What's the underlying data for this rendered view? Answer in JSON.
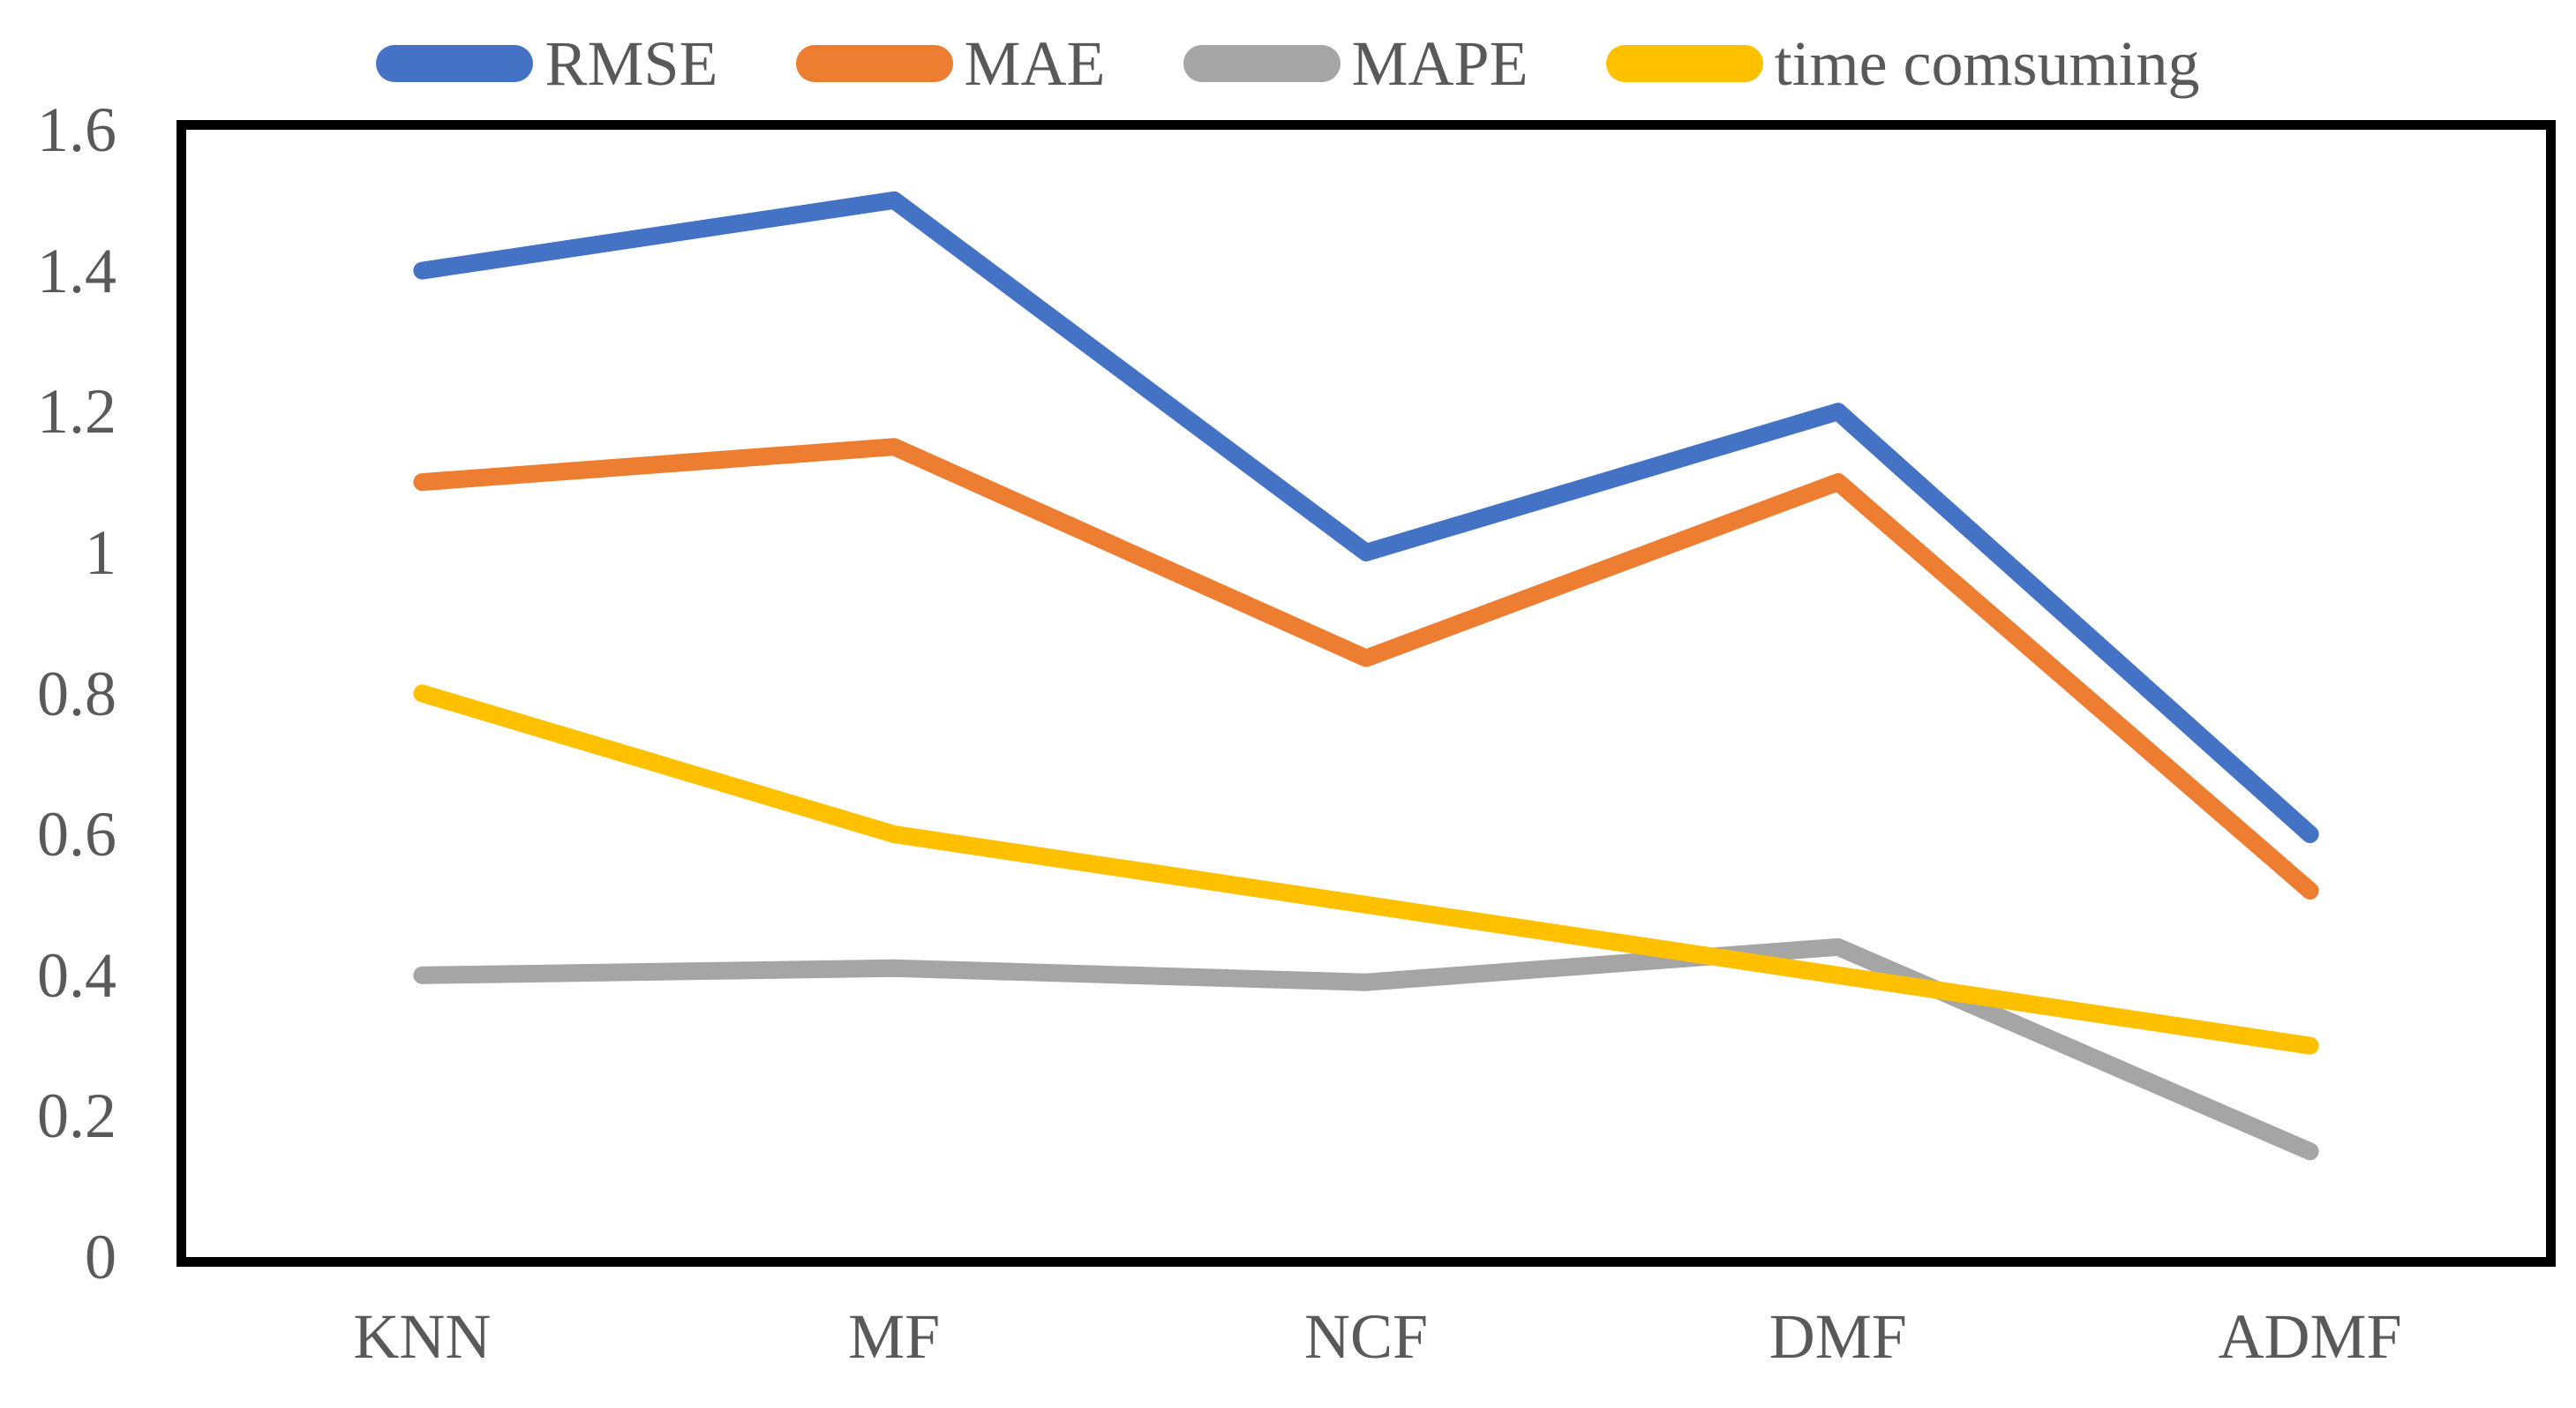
{
  "chart_data": {
    "type": "line",
    "title": "",
    "xlabel": "",
    "ylabel": "",
    "categories": [
      "KNN",
      "MF",
      "NCF",
      "DMF",
      "ADMF"
    ],
    "series": [
      {
        "name": "RMSE",
        "color": "#4472C4",
        "values": [
          1.4,
          1.5,
          1.0,
          1.2,
          0.6
        ]
      },
      {
        "name": "MAE",
        "color": "#ED7D31",
        "values": [
          1.1,
          1.15,
          0.85,
          1.1,
          0.52
        ]
      },
      {
        "name": "MAPE",
        "color": "#A5A5A5",
        "values": [
          0.4,
          0.41,
          0.39,
          0.44,
          0.15
        ]
      },
      {
        "name": "time comsuming",
        "color": "#FFC000",
        "values": [
          0.8,
          0.6,
          0.5,
          0.4,
          0.3
        ]
      }
    ],
    "ylim": [
      0,
      1.6
    ],
    "y_ticks": [
      0,
      0.2,
      0.4,
      0.6,
      0.8,
      1,
      1.2,
      1.4,
      1.6
    ],
    "y_tick_labels": [
      "0",
      "0.2",
      "0.4",
      "0.6",
      "0.8",
      "1",
      "1.2",
      "1.4",
      "1.6"
    ],
    "legend_position": "top",
    "grid": false,
    "plot_border_color": "#000000",
    "axis_text_color": "#595959"
  }
}
